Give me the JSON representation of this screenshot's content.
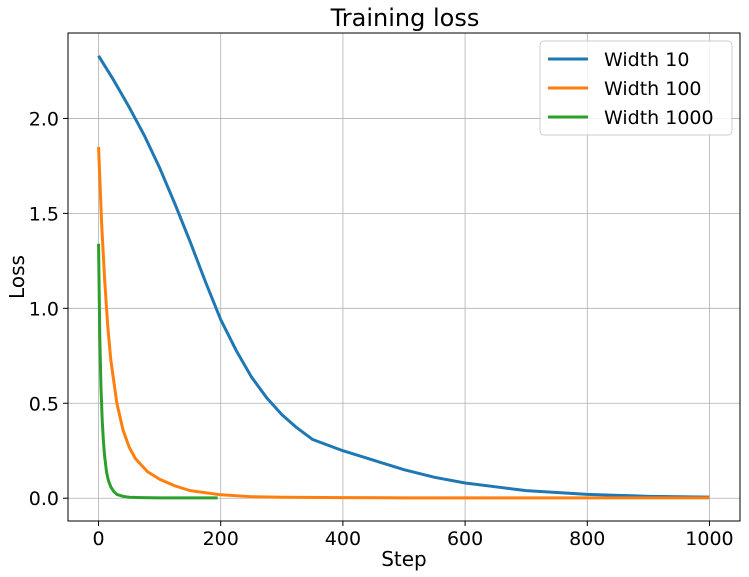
{
  "chart_data": {
    "type": "line",
    "title": "Training loss",
    "xlabel": "Step",
    "ylabel": "Loss",
    "xlim": [
      -50,
      1050
    ],
    "ylim": [
      -0.12,
      2.45
    ],
    "xticks": [
      0,
      200,
      400,
      600,
      800,
      1000
    ],
    "xtick_labels": [
      "0",
      "200",
      "400",
      "600",
      "800",
      "1000"
    ],
    "yticks": [
      0.0,
      0.5,
      1.0,
      1.5,
      2.0
    ],
    "ytick_labels": [
      "0.0",
      "0.5",
      "1.0",
      "1.5",
      "2.0"
    ],
    "grid": true,
    "legend_position": "top-right",
    "series": [
      {
        "name": "Width 10",
        "color": "#1f77b4",
        "x": [
          0,
          25,
          50,
          75,
          100,
          125,
          150,
          175,
          200,
          225,
          250,
          275,
          300,
          325,
          350,
          400,
          450,
          500,
          550,
          600,
          650,
          700,
          750,
          800,
          850,
          900,
          950,
          1000
        ],
        "y": [
          2.33,
          2.2,
          2.06,
          1.91,
          1.74,
          1.55,
          1.35,
          1.14,
          0.94,
          0.78,
          0.64,
          0.53,
          0.44,
          0.37,
          0.31,
          0.25,
          0.2,
          0.15,
          0.11,
          0.08,
          0.06,
          0.04,
          0.03,
          0.02,
          0.015,
          0.01,
          0.008,
          0.006
        ]
      },
      {
        "name": "Width 100",
        "color": "#ff7f0e",
        "x": [
          0,
          5,
          10,
          15,
          20,
          30,
          40,
          50,
          60,
          80,
          100,
          125,
          150,
          200,
          250,
          300,
          400,
          500,
          600,
          700,
          800,
          900,
          1000
        ],
        "y": [
          1.85,
          1.45,
          1.15,
          0.91,
          0.73,
          0.5,
          0.36,
          0.27,
          0.21,
          0.14,
          0.1,
          0.065,
          0.04,
          0.018,
          0.008,
          0.005,
          0.003,
          0.002,
          0.002,
          0.002,
          0.002,
          0.002,
          0.002
        ]
      },
      {
        "name": "Width 1000",
        "color": "#2ca02c",
        "x": [
          0,
          2,
          4,
          6,
          8,
          10,
          13,
          16,
          20,
          25,
          30,
          40,
          50,
          70,
          100,
          150,
          195
        ],
        "y": [
          1.34,
          0.85,
          0.58,
          0.41,
          0.3,
          0.22,
          0.14,
          0.095,
          0.06,
          0.035,
          0.02,
          0.01,
          0.005,
          0.003,
          0.002,
          0.002,
          0.002
        ]
      }
    ]
  }
}
